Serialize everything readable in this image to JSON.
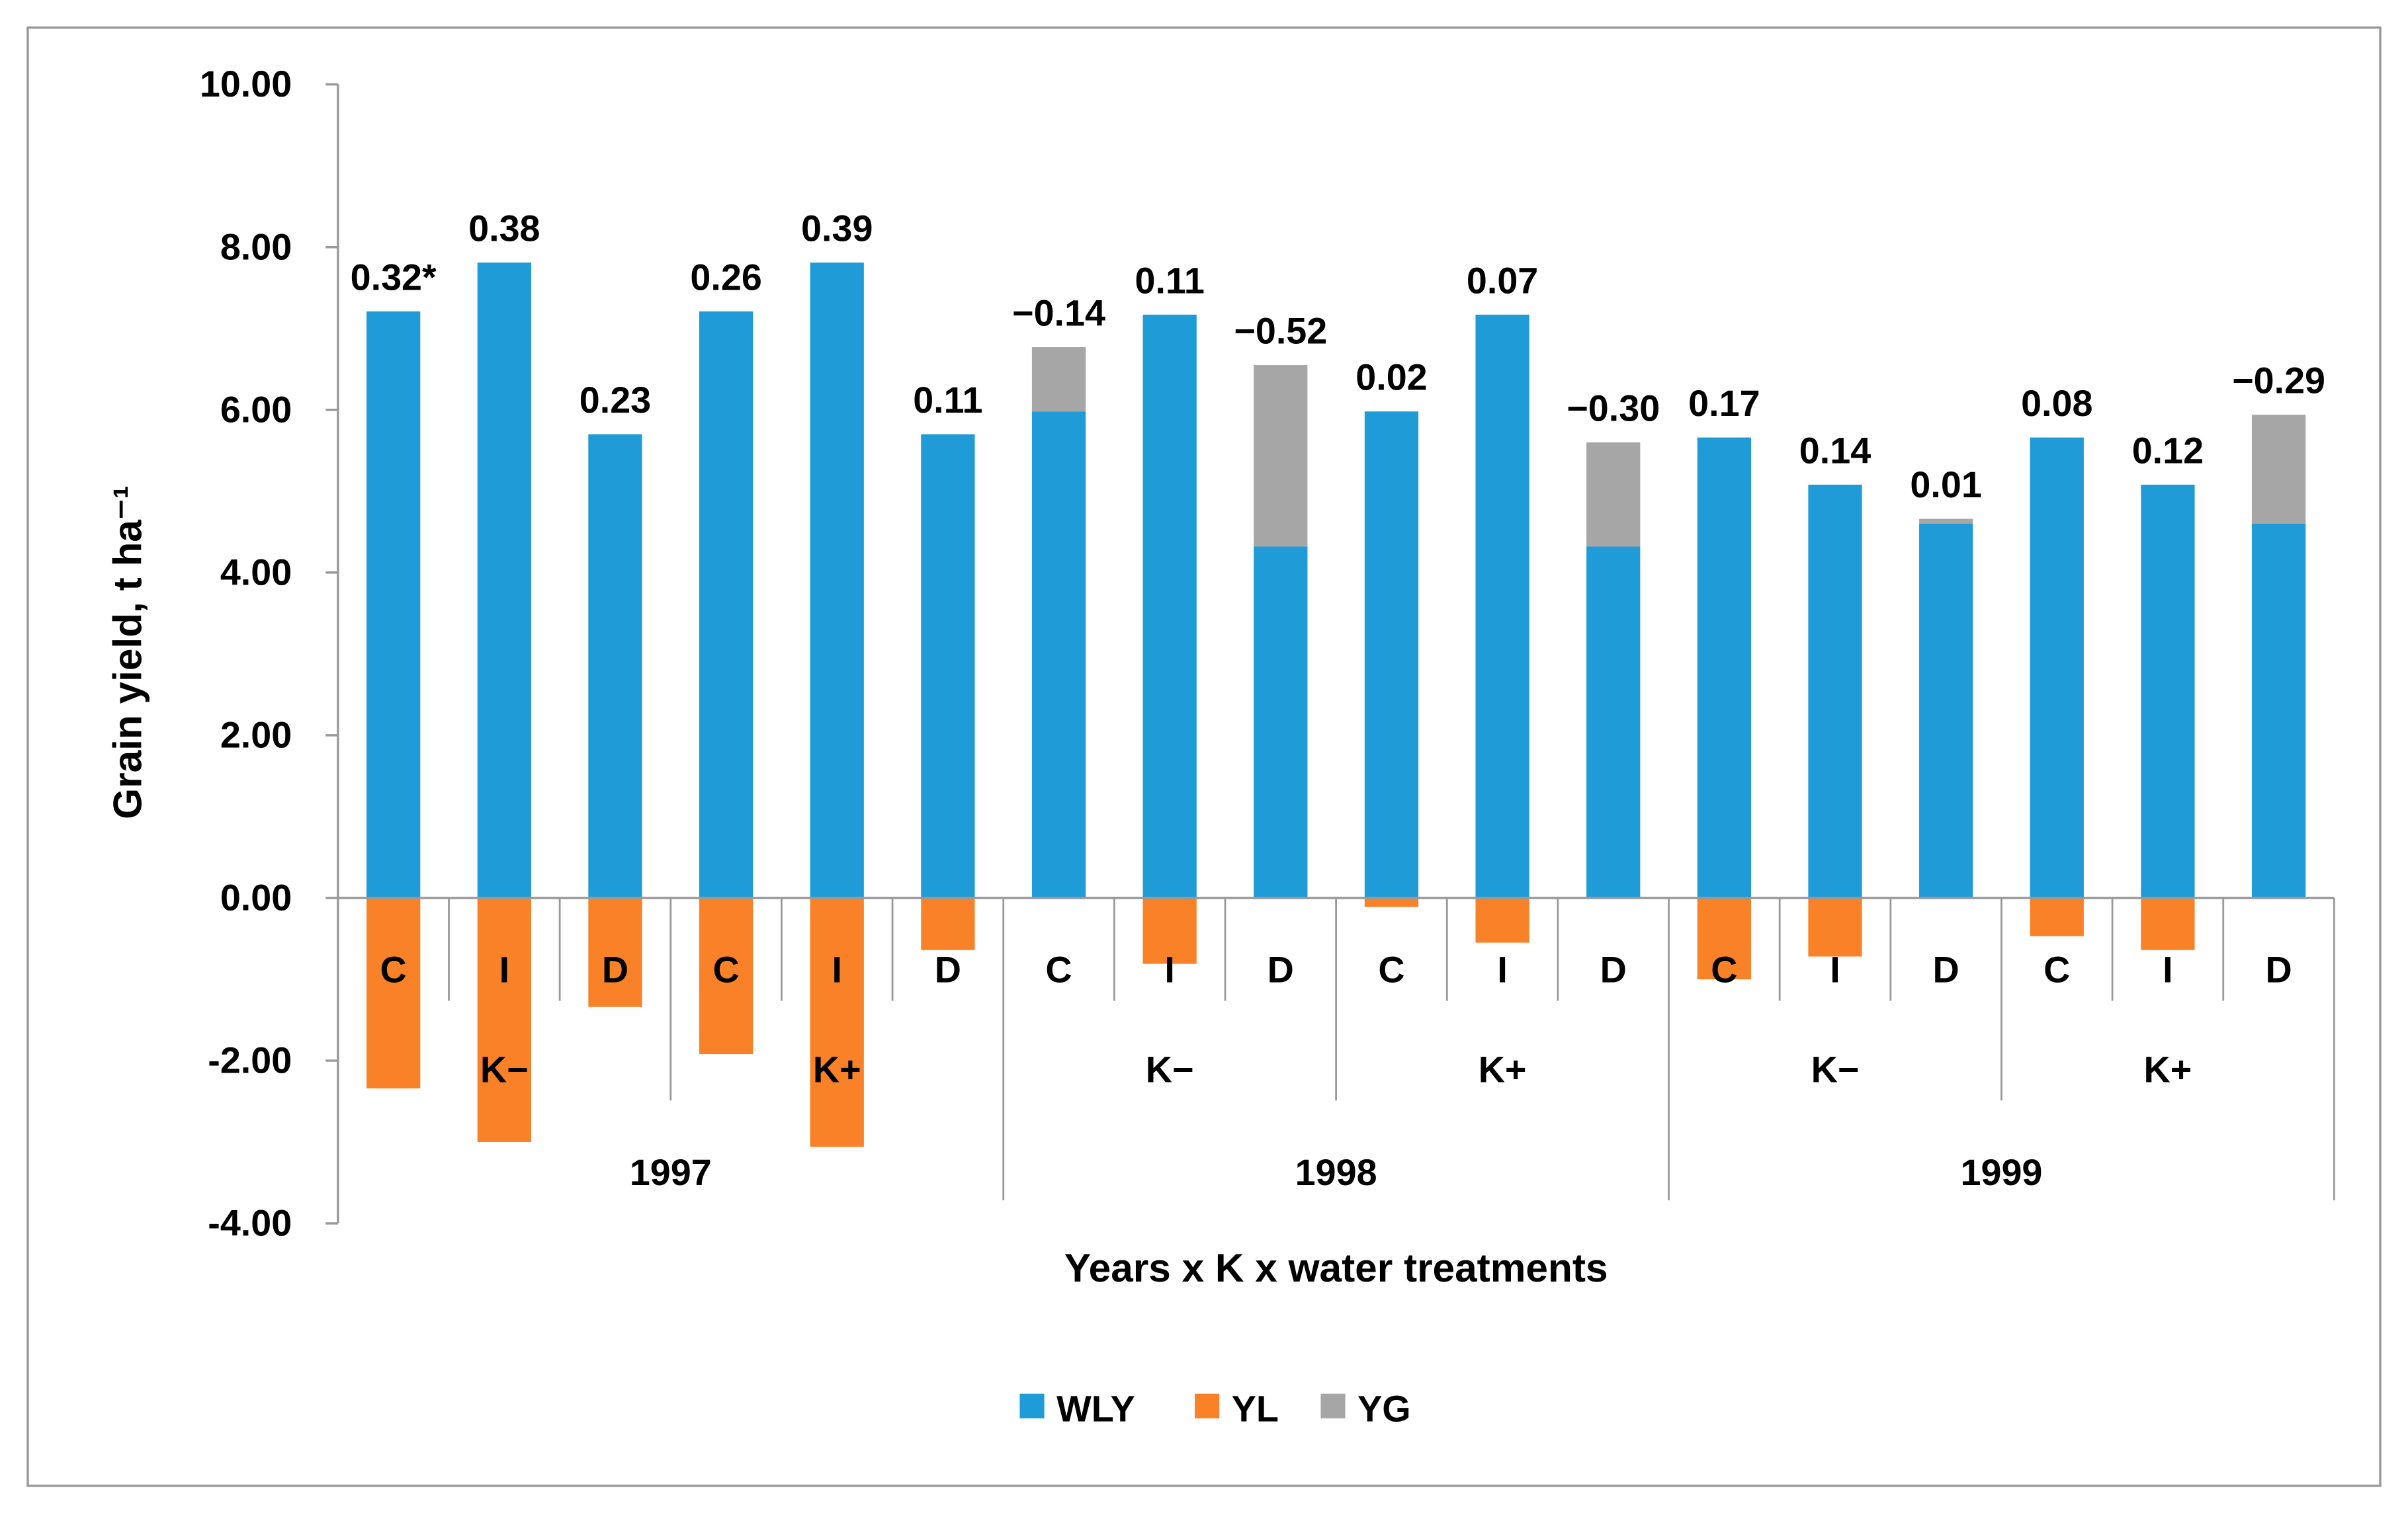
{
  "chart_data": {
    "type": "bar",
    "stacked": true,
    "title": "",
    "xlabel": "Years x K x water treatments",
    "ylabel": "Grain yield, t ha⁻¹",
    "ylim": [
      -4,
      10
    ],
    "yticks": [
      "10.00",
      "8.00",
      "6.00",
      "4.00",
      "2.00",
      "0.00",
      "-2.00",
      "-4.00"
    ],
    "ytick_values": [
      10,
      8,
      6,
      4,
      2,
      0,
      -2,
      -4
    ],
    "grid": false,
    "legend_position": "bottom",
    "categories": [
      "C",
      "I",
      "D",
      "C",
      "I",
      "D",
      "C",
      "I",
      "D",
      "C",
      "I",
      "D",
      "C",
      "I",
      "D",
      "C",
      "I",
      "D"
    ],
    "k_groups": [
      "K−",
      "K+",
      "K−",
      "K+",
      "K−",
      "K+"
    ],
    "years": [
      "1997",
      "1998",
      "1999"
    ],
    "series": [
      {
        "name": "WLY",
        "color": "#1f9bd7",
        "values": [
          7.21,
          7.81,
          5.7,
          7.21,
          7.81,
          5.7,
          5.98,
          7.17,
          4.32,
          5.98,
          7.17,
          4.32,
          5.66,
          5.08,
          4.6,
          5.66,
          5.08,
          4.6
        ]
      },
      {
        "name": "YL",
        "color": "#f98128",
        "values": [
          -2.34,
          -3.0,
          -1.34,
          -1.92,
          -3.06,
          -0.64,
          0,
          -0.81,
          0,
          -0.11,
          -0.55,
          0,
          -1.0,
          -0.72,
          0,
          -0.47,
          -0.64,
          0
        ]
      },
      {
        "name": "YG",
        "color": "#a6a6a6",
        "values": [
          0,
          0,
          0,
          0,
          0,
          0,
          0.79,
          0,
          2.23,
          0,
          0,
          1.28,
          0,
          0,
          0.06,
          0,
          0,
          1.34
        ]
      }
    ],
    "data_labels": [
      "0.32*",
      "0.38",
      "0.23",
      "0.26",
      "0.39",
      "0.11",
      "−0.14",
      "0.11",
      "−0.52",
      "0.02",
      "0.07",
      "−0.30",
      "0.17",
      "0.14",
      "0.01",
      "0.08",
      "0.12",
      "−0.29"
    ]
  }
}
